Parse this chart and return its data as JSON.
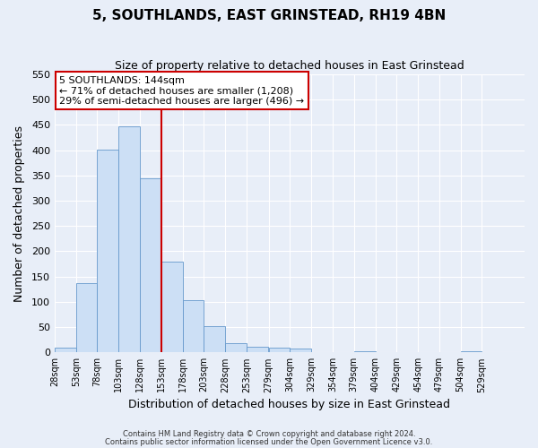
{
  "title": "5, SOUTHLANDS, EAST GRINSTEAD, RH19 4BN",
  "subtitle": "Size of property relative to detached houses in East Grinstead",
  "xlabel": "Distribution of detached houses by size in East Grinstead",
  "ylabel": "Number of detached properties",
  "bin_edges": [
    28,
    53,
    78,
    103,
    128,
    153,
    178,
    203,
    228,
    253,
    279,
    304,
    329,
    354,
    379,
    404,
    429,
    454,
    479,
    504,
    529,
    554
  ],
  "bar_heights": [
    10,
    137,
    401,
    448,
    345,
    180,
    104,
    52,
    18,
    11,
    9,
    8,
    0,
    0,
    3,
    0,
    0,
    0,
    0,
    3,
    0
  ],
  "bar_color": "#ccdff5",
  "bar_edgecolor": "#6699cc",
  "vline_x": 153,
  "vline_color": "#cc0000",
  "annotation_title": "5 SOUTHLANDS: 144sqm",
  "annotation_line1": "← 71% of detached houses are smaller (1,208)",
  "annotation_line2": "29% of semi-detached houses are larger (496) →",
  "annotation_box_edgecolor": "#cc0000",
  "ylim": [
    0,
    550
  ],
  "yticks": [
    0,
    50,
    100,
    150,
    200,
    250,
    300,
    350,
    400,
    450,
    500,
    550
  ],
  "tick_labels": [
    "28sqm",
    "53sqm",
    "78sqm",
    "103sqm",
    "128sqm",
    "153sqm",
    "178sqm",
    "203sqm",
    "228sqm",
    "253sqm",
    "279sqm",
    "304sqm",
    "329sqm",
    "354sqm",
    "379sqm",
    "404sqm",
    "429sqm",
    "454sqm",
    "479sqm",
    "504sqm",
    "529sqm"
  ],
  "footnote1": "Contains HM Land Registry data © Crown copyright and database right 2024.",
  "footnote2": "Contains public sector information licensed under the Open Government Licence v3.0.",
  "bg_color": "#e8eef8",
  "grid_color": "#ffffff",
  "title_fontsize": 11,
  "subtitle_fontsize": 9,
  "xlabel_fontsize": 9,
  "ylabel_fontsize": 9,
  "footnote_fontsize": 6,
  "tick_fontsize": 7,
  "ytick_fontsize": 8,
  "annot_fontsize": 8
}
